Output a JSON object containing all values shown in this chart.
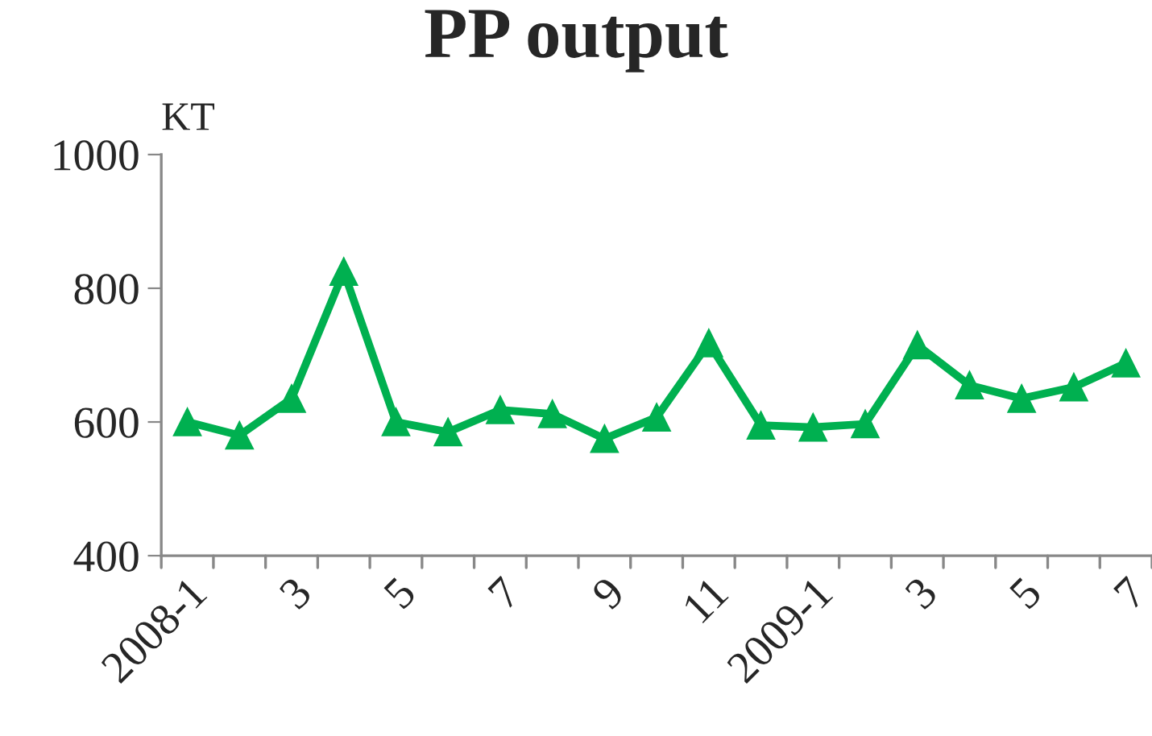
{
  "chart_data": {
    "type": "line",
    "title": "PP output",
    "ylabel": "KT",
    "categories": [
      "2008-1",
      null,
      "3",
      null,
      "5",
      null,
      "7",
      null,
      "9",
      null,
      "11",
      null,
      "2009-1",
      null,
      "3",
      null,
      "5",
      null,
      "7"
    ],
    "series": [
      {
        "color": "#00b050",
        "values": [
          600,
          580,
          635,
          825,
          600,
          585,
          618,
          612,
          575,
          607,
          718,
          595,
          592,
          597,
          715,
          655,
          635,
          652,
          688
        ]
      }
    ],
    "ylim": [
      400,
      1000
    ],
    "yticks": [
      400,
      600,
      800,
      1000
    ],
    "marker": "triangle",
    "line_style": "solid",
    "grid": false,
    "legend": false
  }
}
